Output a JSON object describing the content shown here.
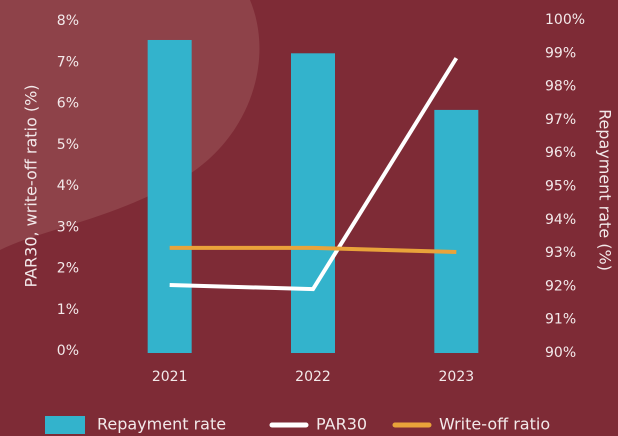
{
  "chart_data": {
    "type": "bar_line",
    "categories": [
      "2021",
      "2022",
      "2023"
    ],
    "series": [
      {
        "name": "Repayment rate",
        "color": "#33b3cc",
        "type": "bar",
        "axis": "y2",
        "values": [
          99.4,
          99.0,
          97.3
        ]
      },
      {
        "name": "PAR30",
        "color": "#ffffff",
        "type": "line",
        "values": [
          1.6,
          1.5,
          7.1
        ]
      },
      {
        "name": "Write-off ratio",
        "color": "#e9a33a",
        "type": "line",
        "values": [
          2.5,
          2.5,
          2.4
        ]
      }
    ],
    "ylabel": "PAR30, write-off ratio (%)",
    "y2label": "Repayment rate (%)",
    "ylim": [
      0,
      8
    ],
    "yticks": [
      {
        "value": 0,
        "label": "0%"
      },
      {
        "value": 1,
        "label": "1%"
      },
      {
        "value": 2,
        "label": "2%"
      },
      {
        "value": 3,
        "label": "3%"
      },
      {
        "value": 4,
        "label": "4%"
      },
      {
        "value": 5,
        "label": "5%"
      },
      {
        "value": 6,
        "label": "6%"
      },
      {
        "value": 7,
        "label": "7%"
      },
      {
        "value": 8,
        "label": "8%"
      }
    ],
    "y2lim": [
      90,
      100
    ],
    "y2ticks": [
      {
        "value": 90,
        "label": "90%"
      },
      {
        "value": 91,
        "label": "91%"
      },
      {
        "value": 92,
        "label": "92%"
      },
      {
        "value": 93,
        "label": "93%"
      },
      {
        "value": 94,
        "label": "94%"
      },
      {
        "value": 95,
        "label": "95%"
      },
      {
        "value": 96,
        "label": "96%"
      },
      {
        "value": 97,
        "label": "97%"
      },
      {
        "value": 98,
        "label": "98%"
      },
      {
        "value": 99,
        "label": "99%"
      },
      {
        "value": 100,
        "label": "100%"
      }
    ],
    "legend": "bottom"
  }
}
